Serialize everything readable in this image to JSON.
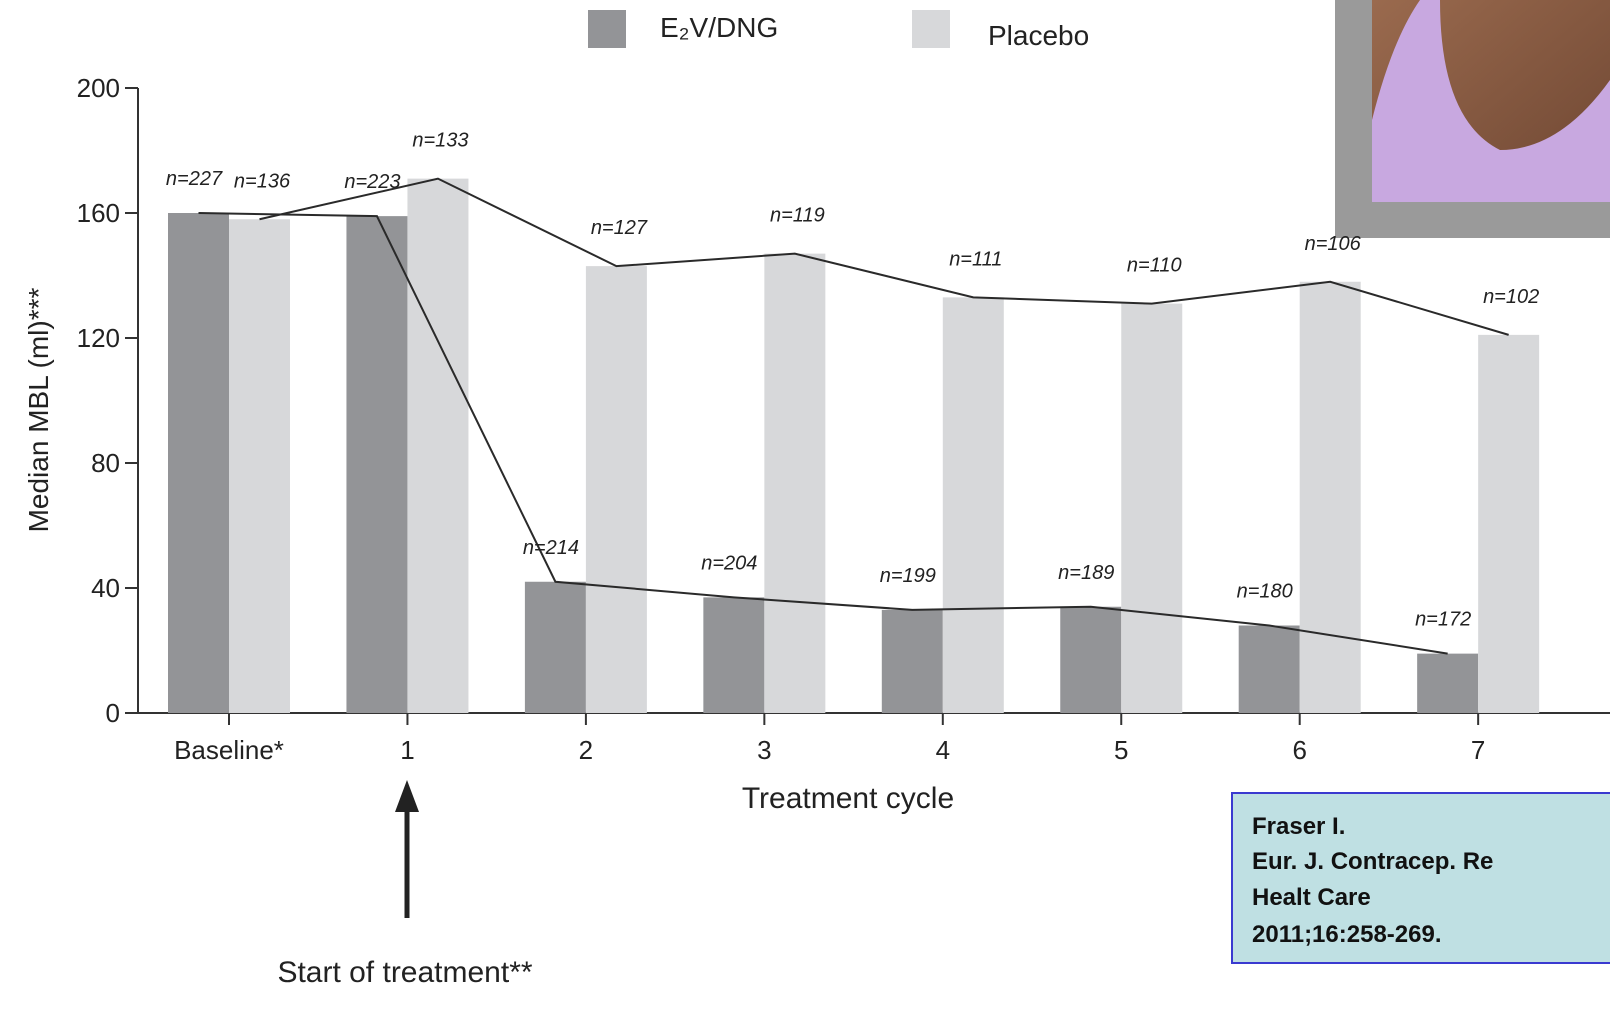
{
  "chart_data": {
    "type": "bar",
    "y_label": "Median MBL  (ml)***",
    "x_label": "Treatment cycle",
    "annotation": "Start of treatment**",
    "categories": [
      "Baseline*",
      "1",
      "2",
      "3",
      "4",
      "5",
      "6",
      "7"
    ],
    "series": [
      {
        "name": "E₂V/DNG",
        "color": "#939497",
        "line_color": "#2a2a2a",
        "values": [
          160,
          159,
          42,
          37,
          33,
          34,
          28,
          19
        ],
        "n_labels": [
          "n=227",
          "n=223",
          "n=214",
          "n=204",
          "n=199",
          "n=189",
          "n=180",
          "n=172"
        ]
      },
      {
        "name": "Placebo",
        "color": "#d7d8da",
        "line_color": "#2a2a2a",
        "values": [
          158,
          171,
          143,
          147,
          133,
          131,
          138,
          121
        ],
        "n_labels": [
          "n=136",
          "n=133",
          "n=127",
          "n=119",
          "n=111",
          "n=110",
          "n=106",
          "n=102"
        ]
      }
    ],
    "ylim": [
      0,
      200
    ],
    "yticks": [
      0,
      40,
      80,
      120,
      160,
      200
    ],
    "grid": false
  },
  "citation": {
    "lines": [
      "Fraser I.",
      "Eur. J. Contracep. Re",
      "Healt Care",
      "2011;16:258-269."
    ]
  }
}
